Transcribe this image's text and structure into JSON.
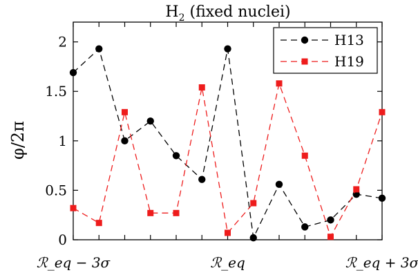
{
  "chart_data": {
    "type": "line",
    "title": "H₂ (fixed nuclei)",
    "ylabel": "φ/2π",
    "xlabel": "",
    "ylim": [
      0,
      2.2
    ],
    "xlim": [
      -3,
      3
    ],
    "yticks": [
      0,
      0.5,
      1,
      1.5,
      2
    ],
    "ytick_labels": [
      "0",
      "0.5",
      "1",
      "1.5",
      "2"
    ],
    "xticks": [
      -3,
      -2.5,
      -2,
      -1.5,
      -1,
      -0.5,
      0,
      0.5,
      1,
      1.5,
      2,
      2.5,
      3
    ],
    "xtick_labels": [
      {
        "x": -3,
        "text": "ℛ_eq − 3σ"
      },
      {
        "x": 0,
        "text": "ℛ_eq"
      },
      {
        "x": 3,
        "text": "ℛ_eq + 3σ"
      }
    ],
    "grid": false,
    "legend_position": "top-right",
    "series": [
      {
        "name": "H13",
        "color": "#000000",
        "marker": "circle",
        "linestyle": "dashed",
        "x": [
          -3,
          -2.5,
          -2,
          -1.5,
          -1,
          -0.5,
          0,
          0.5,
          1,
          1.5,
          2,
          2.5,
          3
        ],
        "y": [
          1.69,
          1.93,
          1.0,
          1.2,
          0.85,
          0.61,
          1.93,
          0.02,
          0.56,
          0.13,
          0.2,
          0.46,
          0.42
        ]
      },
      {
        "name": "H19",
        "color": "#ee1c1c",
        "marker": "square",
        "linestyle": "dashed",
        "x": [
          -3,
          -2.5,
          -2,
          -1.5,
          -1,
          -0.5,
          0,
          0.5,
          1,
          1.5,
          2,
          2.5,
          3
        ],
        "y": [
          0.32,
          0.17,
          1.29,
          0.27,
          0.27,
          1.54,
          0.07,
          0.37,
          1.58,
          0.85,
          0.03,
          0.51,
          1.29
        ]
      }
    ]
  }
}
